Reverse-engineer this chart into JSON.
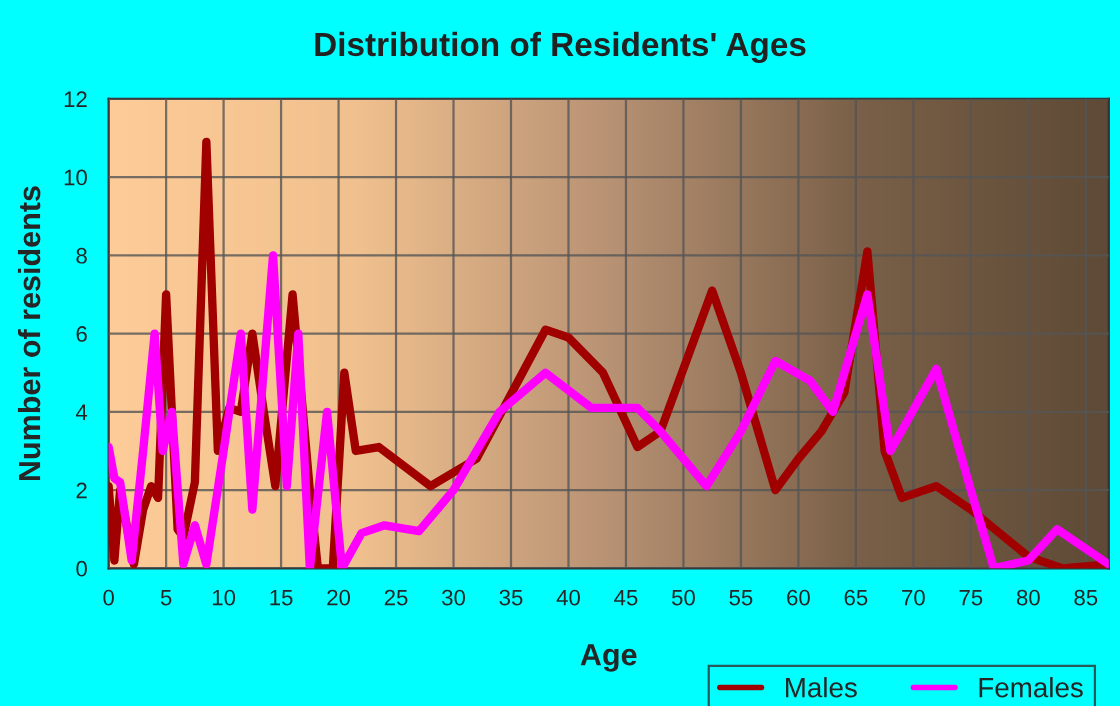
{
  "chart_data": {
    "type": "line",
    "title": "Distribution of Residents' Ages",
    "xlabel": "Age",
    "ylabel": "Number of residents",
    "xlim": [
      0,
      87
    ],
    "xticks": [
      0,
      5,
      10,
      15,
      20,
      25,
      30,
      35,
      40,
      45,
      50,
      55,
      60,
      65,
      70,
      75,
      80,
      85
    ],
    "ylim": [
      0,
      12
    ],
    "yticks": [
      0,
      2,
      4,
      6,
      8,
      10,
      12
    ],
    "grid": true,
    "legend": "bottom right",
    "marker": "none",
    "line_style": "solid",
    "series": [
      {
        "name": "Males",
        "color": "#a00000",
        "x": [
          0,
          0.5,
          1,
          2.2,
          3,
          3.7,
          4.3,
          5,
          6,
          6.5,
          7.5,
          8.5,
          9.5,
          10.5,
          11.5,
          12.5,
          13.5,
          14.5,
          16,
          17.5,
          18.2,
          19.5,
          20.5,
          21.5,
          23.5,
          28,
          32,
          36,
          38,
          40,
          43,
          46,
          48,
          52.5,
          55,
          58,
          60,
          62,
          64,
          66,
          67.5,
          69,
          72,
          75,
          80,
          83,
          87
        ],
        "values": [
          2.1,
          0.2,
          2,
          0.1,
          1.5,
          2.1,
          1.8,
          7,
          1,
          0.8,
          2.2,
          10.9,
          3,
          4.1,
          4,
          6,
          4,
          2.1,
          7,
          2,
          0,
          0,
          5,
          3,
          3.1,
          2.1,
          2.8,
          5,
          6.1,
          5.9,
          5,
          3.1,
          3.5,
          7.1,
          5,
          2,
          2.8,
          3.5,
          4.5,
          8.1,
          3,
          1.8,
          2.1,
          1.5,
          0.3,
          0,
          0.1
        ]
      },
      {
        "name": "Females",
        "color": "#ff00ff",
        "x": [
          0,
          0.5,
          1,
          2,
          3,
          4,
          4.7,
          5.5,
          6.5,
          7.5,
          8.5,
          10,
          11.5,
          12.5,
          14.3,
          15.5,
          16.5,
          17.5,
          19,
          20.3,
          22,
          24,
          27,
          30,
          34,
          38,
          42,
          46,
          48,
          52,
          55,
          58,
          61,
          63,
          66,
          68,
          72,
          75,
          77,
          80,
          82.5,
          87
        ],
        "values": [
          3.1,
          2.3,
          2.2,
          0.2,
          3,
          6,
          3,
          4,
          0.1,
          1.1,
          0.1,
          3,
          6,
          1.5,
          8,
          2.1,
          6,
          0,
          4,
          0,
          0.9,
          1.1,
          0.95,
          2,
          4,
          5,
          4.1,
          4.1,
          3.5,
          2.1,
          3.5,
          5.3,
          4.8,
          4,
          7,
          3,
          5.1,
          2,
          0,
          0.2,
          1,
          0.1
        ]
      }
    ]
  }
}
